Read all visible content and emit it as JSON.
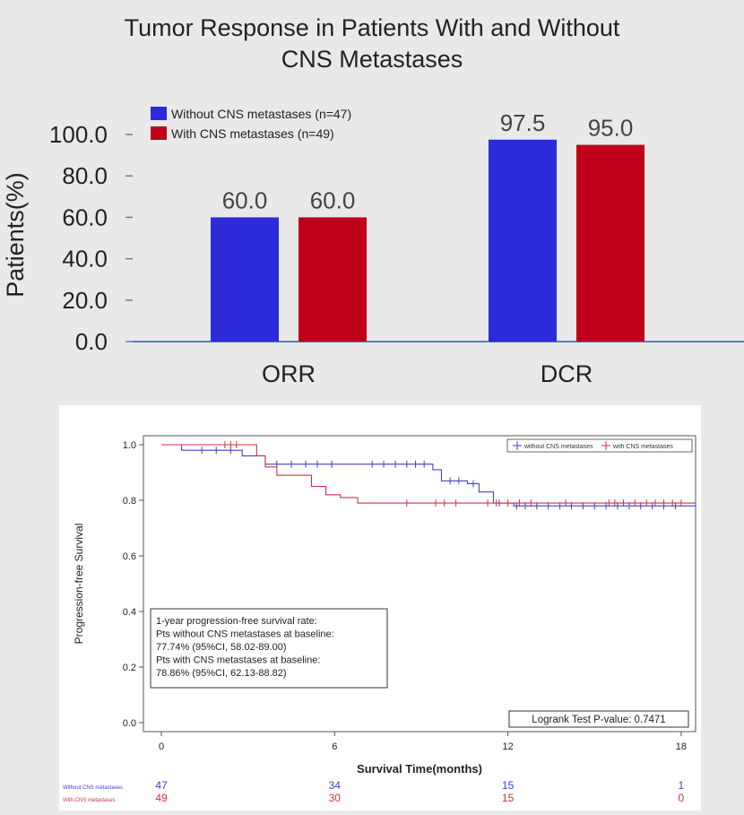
{
  "top_chart": {
    "title_line1": "Tumor Response in Patients With and Without",
    "title_line2": "CNS Metastases",
    "ylabel": "Patients(%)",
    "y_ticks": [
      "100.0",
      "80.0",
      "60.0",
      "40.0",
      "20.0",
      "0.0"
    ]
  },
  "km_chart": {
    "ylabel": "Progression-free Survival",
    "xlabel": "Survival Time(months)",
    "y_ticks": [
      "1.0",
      "0.8",
      "0.6",
      "0.4",
      "0.2",
      "0.0"
    ],
    "x_ticks": [
      "0",
      "6",
      "12",
      "18"
    ],
    "legend_without": "without CNS metastases",
    "legend_with": "with CNS metastases",
    "annotation": [
      "1-year progression-free survival rate:",
      "Pts without CNS metastases at baseline:",
      "77.74% (95%CI, 58.02-89.00)",
      "Pts with CNS metastases at baseline:",
      "78.86% (95%CI, 62.13-88.82)"
    ],
    "pvalue_text": "Logrank Test P-value: 0.7471",
    "risk_label_without": "Without CNS metastases",
    "risk_label_with": "With CNS metastases",
    "risk_without": [
      "47",
      "34",
      "15",
      "1"
    ],
    "risk_with": [
      "49",
      "30",
      "15",
      "0"
    ]
  },
  "colors": {
    "blue": "#2b2bd9",
    "red": "#c0001a",
    "km_blue": "#4040d0",
    "km_red": "#cc3344"
  },
  "chart_data": [
    {
      "type": "bar",
      "title": "Tumor Response in Patients With and Without CNS Metastases",
      "xlabel": "",
      "ylabel": "Patients(%)",
      "ylim": [
        0,
        100
      ],
      "categories": [
        "ORR",
        "DCR"
      ],
      "series": [
        {
          "name": "Without CNS metastases (n=47)",
          "values": [
            60.0,
            97.5
          ]
        },
        {
          "name": "With CNS metastases (n=49)",
          "values": [
            60.0,
            95.0
          ]
        }
      ],
      "value_labels": [
        [
          "60.0",
          "97.5"
        ],
        [
          "60.0",
          "95.0"
        ]
      ],
      "legend": "top-left",
      "grid": false
    },
    {
      "type": "line",
      "title": "",
      "xlabel": "Survival Time(months)",
      "ylabel": "Progression-free Survival",
      "xlim": [
        0,
        18.5
      ],
      "ylim": [
        0,
        1.0
      ],
      "step": true,
      "series": [
        {
          "name": "without CNS metastases",
          "x": [
            0,
            0.7,
            2.8,
            3.6,
            9.4,
            9.7,
            10.6,
            11.0,
            11.5,
            12.2,
            18.5
          ],
          "y": [
            1.0,
            0.98,
            0.96,
            0.93,
            0.91,
            0.87,
            0.86,
            0.83,
            0.79,
            0.78,
            0.78
          ],
          "censor_x": [
            1.4,
            1.9,
            2.4,
            4.0,
            4.5,
            5.0,
            5.4,
            5.9,
            7.3,
            7.7,
            8.1,
            8.5,
            8.8,
            9.1,
            10.0,
            10.3,
            10.8,
            11.7,
            12.3,
            12.6,
            13.0,
            13.4,
            13.8,
            14.2,
            14.6,
            15.0,
            15.4,
            15.8,
            16.2,
            16.6,
            17.0,
            17.4,
            17.8,
            18.5
          ]
        },
        {
          "name": "with CNS metastases",
          "x": [
            0,
            3.3,
            3.6,
            4.0,
            5.2,
            5.7,
            6.2,
            6.8,
            18.5
          ],
          "y": [
            1.0,
            0.96,
            0.92,
            0.89,
            0.85,
            0.82,
            0.81,
            0.79,
            0.79
          ],
          "censor_x": [
            2.2,
            2.4,
            2.6,
            8.5,
            9.5,
            9.8,
            10.2,
            11.3,
            11.6,
            12.0,
            12.4,
            12.8,
            14.0,
            15.5,
            15.7,
            16.0,
            16.4,
            16.8,
            17.1,
            17.4,
            17.7,
            18.0
          ]
        }
      ],
      "number_at_risk": {
        "times": [
          0,
          6,
          12,
          18
        ],
        "without CNS metastases": [
          47,
          34,
          15,
          1
        ],
        "with CNS metastases": [
          49,
          30,
          15,
          0
        ]
      },
      "legend": "top-right",
      "grid": false
    }
  ]
}
